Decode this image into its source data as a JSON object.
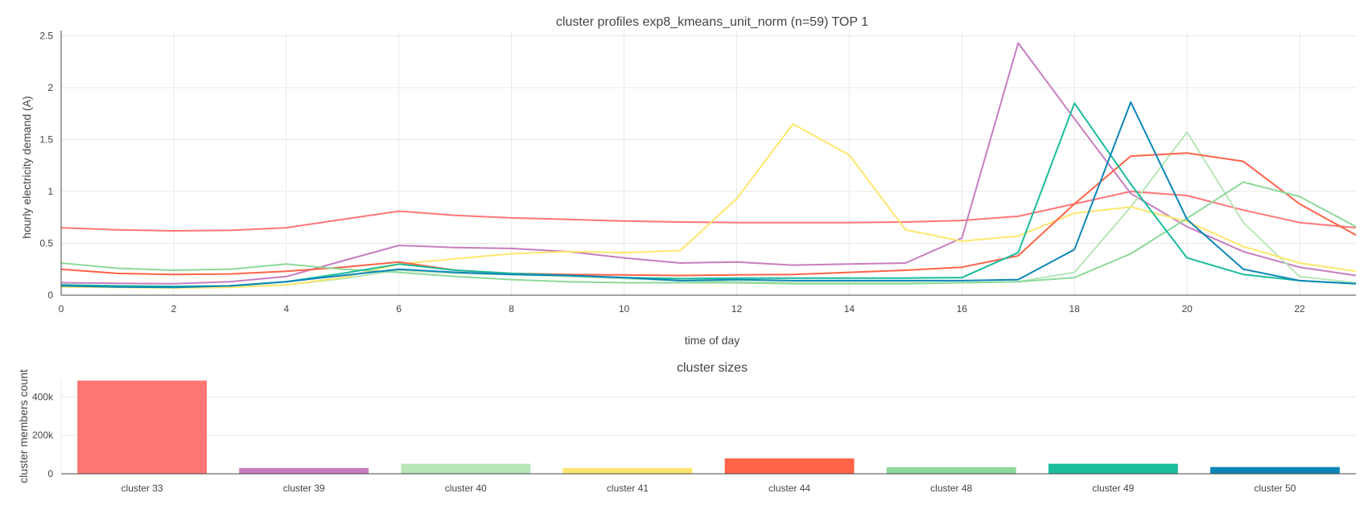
{
  "chart_data": [
    {
      "type": "line",
      "title": "cluster profiles exp8_kmeans_unit_norm (n=59) TOP 1",
      "xlabel": "time of day",
      "ylabel": "hourly electricity demand (A)",
      "xlim": [
        0,
        23
      ],
      "ylim": [
        0,
        2.55
      ],
      "xticks": [
        "0",
        "2",
        "4",
        "6",
        "8",
        "10",
        "12",
        "14",
        "16",
        "18",
        "20",
        "22"
      ],
      "yticks": [
        "0",
        "0.5",
        "1",
        "1.5",
        "2",
        "2.5"
      ],
      "grid": true,
      "x": [
        0,
        1,
        2,
        3,
        4,
        5,
        6,
        7,
        8,
        9,
        10,
        11,
        12,
        13,
        14,
        15,
        16,
        17,
        18,
        19,
        20,
        21,
        22,
        23
      ],
      "series": [
        {
          "color": "#ff7675",
          "values": [
            0.65,
            0.63,
            0.62,
            0.625,
            0.65,
            0.73,
            0.81,
            0.77,
            0.745,
            0.73,
            0.715,
            0.705,
            0.7,
            0.7,
            0.7,
            0.705,
            0.72,
            0.76,
            0.88,
            1.0,
            0.96,
            0.82,
            0.7,
            0.65
          ]
        },
        {
          "color": "#c77dbf",
          "values": [
            0.12,
            0.115,
            0.11,
            0.13,
            0.18,
            0.33,
            0.48,
            0.46,
            0.45,
            0.42,
            0.36,
            0.31,
            0.32,
            0.29,
            0.3,
            0.31,
            0.55,
            2.43,
            1.7,
            0.98,
            0.66,
            0.42,
            0.27,
            0.19
          ]
        },
        {
          "color": "#b8e6b8",
          "values": [
            0.09,
            0.085,
            0.08,
            0.085,
            0.1,
            0.16,
            0.24,
            0.21,
            0.2,
            0.18,
            0.16,
            0.14,
            0.13,
            0.12,
            0.12,
            0.12,
            0.12,
            0.13,
            0.22,
            0.85,
            1.57,
            0.7,
            0.18,
            0.12
          ]
        },
        {
          "color": "#ffe66d",
          "values": [
            0.08,
            0.075,
            0.07,
            0.075,
            0.1,
            0.17,
            0.3,
            0.35,
            0.4,
            0.42,
            0.41,
            0.43,
            0.93,
            1.65,
            1.35,
            0.63,
            0.52,
            0.57,
            0.79,
            0.85,
            0.71,
            0.47,
            0.31,
            0.23
          ]
        },
        {
          "color": "#ff6348",
          "values": [
            0.25,
            0.21,
            0.2,
            0.205,
            0.23,
            0.27,
            0.32,
            0.24,
            0.21,
            0.2,
            0.195,
            0.19,
            0.195,
            0.2,
            0.22,
            0.24,
            0.27,
            0.38,
            0.88,
            1.34,
            1.37,
            1.29,
            0.88,
            0.58
          ]
        },
        {
          "color": "#8dd99a",
          "values": [
            0.31,
            0.26,
            0.24,
            0.25,
            0.3,
            0.25,
            0.22,
            0.18,
            0.15,
            0.13,
            0.12,
            0.12,
            0.12,
            0.11,
            0.11,
            0.11,
            0.12,
            0.13,
            0.17,
            0.4,
            0.74,
            1.09,
            0.95,
            0.66
          ]
        },
        {
          "color": "#1abc9c",
          "values": [
            0.1,
            0.09,
            0.085,
            0.09,
            0.13,
            0.21,
            0.3,
            0.24,
            0.21,
            0.19,
            0.17,
            0.16,
            0.165,
            0.165,
            0.165,
            0.165,
            0.17,
            0.41,
            1.85,
            1.07,
            0.36,
            0.2,
            0.14,
            0.11
          ]
        },
        {
          "color": "#0c86b8",
          "values": [
            0.09,
            0.08,
            0.075,
            0.09,
            0.13,
            0.19,
            0.25,
            0.22,
            0.2,
            0.19,
            0.17,
            0.14,
            0.15,
            0.14,
            0.14,
            0.14,
            0.14,
            0.15,
            0.44,
            1.86,
            0.73,
            0.25,
            0.14,
            0.11
          ]
        }
      ]
    },
    {
      "type": "bar",
      "title": "cluster sizes",
      "xlabel": "",
      "ylabel": "cluster members count",
      "ylim": [
        0,
        490000
      ],
      "yticks": [
        {
          "value": 0,
          "label": "0"
        },
        {
          "value": 200000,
          "label": "200k"
        },
        {
          "value": 400000,
          "label": "400k"
        }
      ],
      "categories": [
        "cluster 33",
        "cluster 39",
        "cluster 40",
        "cluster 41",
        "cluster 44",
        "cluster 48",
        "cluster 49",
        "cluster 50"
      ],
      "values": [
        485000,
        30000,
        52000,
        30000,
        80000,
        34000,
        52000,
        35000
      ],
      "colors": [
        "#ff7675",
        "#c77dbf",
        "#b8e6b8",
        "#ffe66d",
        "#ff6348",
        "#8dd99a",
        "#1abc9c",
        "#0c86b8"
      ]
    }
  ]
}
